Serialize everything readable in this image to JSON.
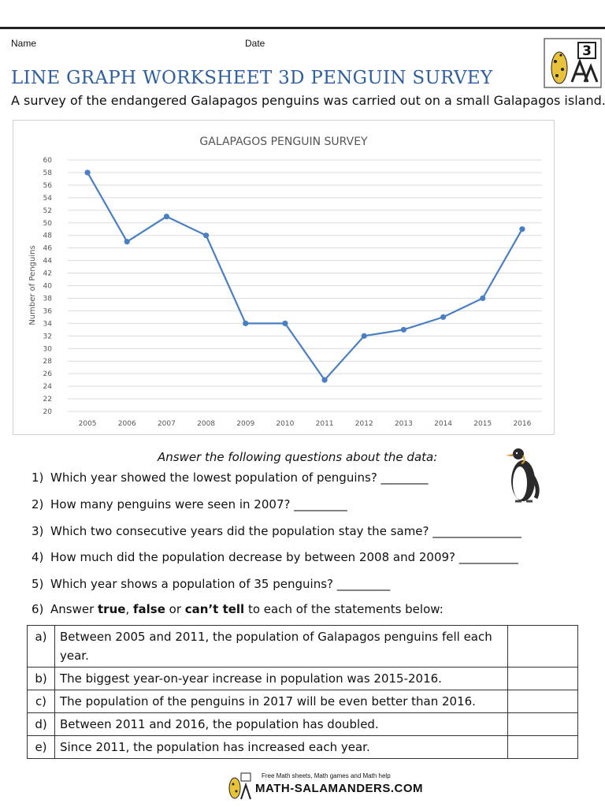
{
  "header": {
    "name_label": "Name",
    "date_label": "Date",
    "grade": "3"
  },
  "title": "LINE GRAPH WORKSHEET 3D PENGUIN SURVEY",
  "intro": "A survey of the endangered Galapagos penguins was carried out on a small Galapagos island.",
  "chart_data": {
    "type": "line",
    "title": "GALAPAGOS PENGUIN SURVEY",
    "xlabel": "",
    "ylabel": "Number of Penguins",
    "categories": [
      "2005",
      "2006",
      "2007",
      "2008",
      "2009",
      "2010",
      "2011",
      "2012",
      "2013",
      "2014",
      "2015",
      "2016"
    ],
    "values": [
      58,
      47,
      51,
      48,
      34,
      34,
      25,
      32,
      33,
      35,
      38,
      49
    ],
    "ylim": [
      20,
      60
    ],
    "yticks": [
      20,
      22,
      24,
      26,
      28,
      30,
      32,
      34,
      36,
      38,
      40,
      42,
      44,
      46,
      48,
      50,
      52,
      54,
      56,
      58,
      60
    ],
    "grid": true,
    "legend": "none",
    "color": "#4a7fc4"
  },
  "questions_heading": "Answer the following questions about the data:",
  "questions": [
    {
      "num": "1)",
      "text": "Which year showed the lowest population of penguins? ________"
    },
    {
      "num": "2)",
      "text": "How many penguins were seen in 2007? _________"
    },
    {
      "num": "3)",
      "text": "Which two consecutive years did the population stay the same? _______________"
    },
    {
      "num": "4)",
      "text": "How much did the population decrease by between 2008 and 2009? __________"
    },
    {
      "num": "5)",
      "text": "Which year shows a population of 35 penguins? _________"
    }
  ],
  "q6": {
    "num": "6)",
    "pre": "Answer ",
    "true": "true",
    "sep1": ", ",
    "false": "false",
    "mid": " or ",
    "cant": "can’t tell",
    "post": " to each of the statements below:"
  },
  "statements": [
    {
      "letter": "a)",
      "text": "Between 2005 and 2011, the population of Galapagos penguins fell each year."
    },
    {
      "letter": "b)",
      "text": "The biggest year-on-year increase in population was 2015-2016."
    },
    {
      "letter": "c)",
      "text": "The population of the penguins in 2017 will be even better than 2016."
    },
    {
      "letter": "d)",
      "text": "Between 2011 and 2016, the population has doubled."
    },
    {
      "letter": "e)",
      "text": "Since 2011, the population has increased each year."
    }
  ],
  "footer": {
    "tagline": "Free Math sheets, Math games and Math help",
    "site": "MATH-SALAMANDERS.COM"
  }
}
